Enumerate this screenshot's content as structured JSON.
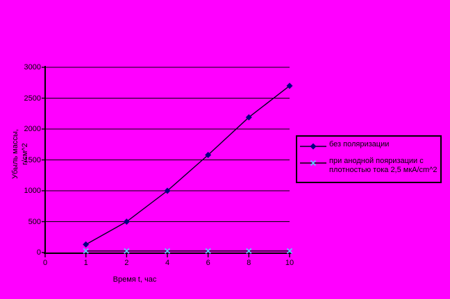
{
  "window": {
    "background_color": "#FF00FF"
  },
  "chart_data": {
    "type": "line",
    "title": "",
    "xlabel": "Время t, час",
    "ylabel": "Убыль массы, г/см^2",
    "ylabel_lines": [
      "Убыль массы,",
      "г/см^2"
    ],
    "x_categories": [
      "0",
      "1",
      "2",
      "4",
      "6",
      "8",
      "10"
    ],
    "y_ticks": [
      "0",
      "500",
      "1000",
      "1500",
      "2000",
      "2500",
      "3000"
    ],
    "ylim": [
      0,
      3000
    ],
    "grid": "horizontal",
    "legend_position": "right",
    "axis_color": "#000000",
    "gridline_color": "#000000",
    "series": [
      {
        "name": "без поляризации",
        "marker": "diamond",
        "marker_color": "#000080",
        "line_color": "#000020",
        "x": [
          "1",
          "2",
          "4",
          "6",
          "8",
          "10"
        ],
        "values": [
          130,
          500,
          1000,
          1580,
          2190,
          2700
        ]
      },
      {
        "name": "при анодной пояризации с плотностью тока 2,5 мкА/cm^2",
        "marker": "x",
        "marker_color": "#55CCFF",
        "line_color": "#000000",
        "x": [
          "1",
          "2",
          "4",
          "6",
          "8",
          "10"
        ],
        "values": [
          25,
          25,
          25,
          25,
          25,
          25
        ]
      }
    ],
    "legend": {
      "entries": [
        {
          "lines": [
            "без поляризации",
            ""
          ]
        },
        {
          "lines": [
            "при анодной пояризации с",
            "плотностью тока 2,5 мкА/cm^2"
          ]
        }
      ]
    }
  }
}
